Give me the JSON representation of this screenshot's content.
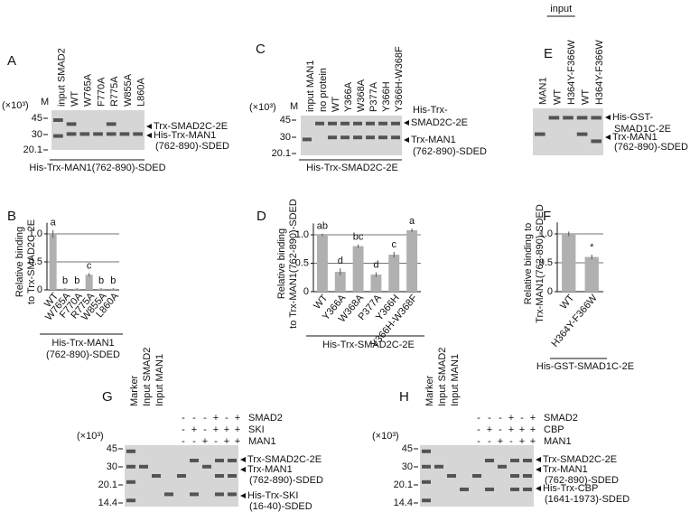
{
  "gels": [
    {
      "panel": "A",
      "unit": "(×10³)",
      "marker_lane": "M",
      "lanes": [
        "input SMAD2",
        "WT",
        "W765A",
        "F770A",
        "R775A",
        "W855A",
        "L860A"
      ],
      "markers": [
        "45",
        "30",
        "20.1"
      ],
      "band_labels": [
        "Trx-SMAD2C-2E",
        "His-Trx-MAN1",
        "(762-890)-SDED"
      ],
      "footer": "His-Trx-MAN1(762-890)-SDED"
    },
    {
      "panel": "C",
      "unit": "(×10³)",
      "marker_lane": "M",
      "lanes": [
        "input MAN1",
        "no protein",
        "WT",
        "Y366A",
        "W368A",
        "P377A",
        "Y366H",
        "Y366H-W368F"
      ],
      "markers": [
        "45",
        "30",
        "20.1"
      ],
      "band_labels": [
        "His-Trx-",
        "SMAD2C-2E",
        "Trx-MAN1",
        "(762-890)-SDED"
      ],
      "footer": "His-Trx-SMAD2C-2E"
    },
    {
      "panel": "E",
      "group_label": "input",
      "lanes": [
        "MAN1",
        "WT",
        "H364Y-F366W",
        "WT",
        "H364Y-F366W"
      ],
      "band_labels": [
        "His-GST-",
        "SMAD1C-2E",
        "Trx-MAN1",
        "(762-890)-SDED"
      ]
    },
    {
      "panel": "G",
      "unit": "(×10³)",
      "lanes": [
        "Marker",
        "Input SMAD2",
        "Input MAN1"
      ],
      "rows": [
        {
          "name": "SMAD2",
          "signs": [
            "-",
            "-",
            "-",
            "+",
            "-",
            "+"
          ]
        },
        {
          "name": "SKI",
          "signs": [
            "-",
            "+",
            "-",
            "+",
            "+",
            "+"
          ]
        },
        {
          "name": "MAN1",
          "signs": [
            "-",
            "-",
            "+",
            "-",
            "+",
            "+"
          ]
        }
      ],
      "markers": [
        "45",
        "30",
        "20.1",
        "14.4"
      ],
      "band_labels": [
        "Trx-SMAD2C-2E",
        "Trx-MAN1",
        "(762-890)-SDED",
        "His-Trx-SKI",
        "(16-40)-SDED"
      ]
    },
    {
      "panel": "H",
      "unit": "(×10³)",
      "lanes": [
        "Marker",
        "Input SMAD2",
        "Input MAN1"
      ],
      "rows": [
        {
          "name": "SMAD2",
          "signs": [
            "-",
            "-",
            "-",
            "+",
            "-",
            "+"
          ]
        },
        {
          "name": "CBP",
          "signs": [
            "-",
            "+",
            "-",
            "+",
            "+",
            "+"
          ]
        },
        {
          "name": "MAN1",
          "signs": [
            "-",
            "-",
            "+",
            "-",
            "+",
            "+"
          ]
        }
      ],
      "markers": [
        "45",
        "30",
        "20.1",
        "14.4"
      ],
      "band_labels": [
        "Trx-SMAD2C-2E",
        "Trx-MAN1",
        "(762-890)-SDED",
        "His-Trx-CBP",
        "(1641-1973)-SDED"
      ]
    }
  ],
  "chart_data": [
    {
      "type": "bar",
      "panel": "B",
      "categories": [
        "WT",
        "W765A",
        "F770A",
        "R775A",
        "W855A",
        "L860A"
      ],
      "values": [
        1.0,
        0.02,
        0.02,
        0.27,
        0.02,
        0.02
      ],
      "errors": [
        0.07,
        0.01,
        0.01,
        0.03,
        0.01,
        0.01
      ],
      "annotations": [
        "a",
        "b",
        "b",
        "c",
        "b",
        "b"
      ],
      "color": "#b0b0b0",
      "ylim": [
        0,
        1.2
      ],
      "yticks": [
        0,
        0.5,
        {
          "value": 1,
          "label": "1.0"
        }
      ],
      "grid": true,
      "ylabel": [
        "Relative binding",
        "to Trx-SMAD2C-2E"
      ],
      "xlabel": [
        "His-Trx-MAN1",
        "(762-890)-SDED"
      ]
    },
    {
      "type": "bar",
      "panel": "D",
      "categories": [
        "WT",
        "Y366A",
        "W368A",
        "P377A",
        "Y366H",
        "Y366H-W368F"
      ],
      "values": [
        1.0,
        0.35,
        0.8,
        0.3,
        0.65,
        1.08
      ],
      "errors": [
        0.02,
        0.06,
        0.03,
        0.04,
        0.05,
        0.03
      ],
      "annotations": [
        "ab",
        "d",
        "bc",
        "d",
        "c",
        "a"
      ],
      "color": "#b0b0b0",
      "ylim": [
        0,
        1.2
      ],
      "yticks": [
        0,
        0.5,
        {
          "value": 1,
          "label": "1.0"
        }
      ],
      "grid": true,
      "ylabel": [
        "Relative binding",
        "to Trx-MAN1(762-890)-SDED"
      ],
      "xlabel": [
        "His-Trx-SMAD2C-2E"
      ]
    },
    {
      "type": "bar",
      "panel": "F",
      "categories": [
        "WT",
        "H364Y-F366W"
      ],
      "values": [
        1.0,
        0.6
      ],
      "errors": [
        0.04,
        0.04
      ],
      "annotations": [
        null,
        "*"
      ],
      "color": "#b0b0b0",
      "ylim": [
        0,
        1.2
      ],
      "yticks": [
        0,
        0.5,
        {
          "value": 1,
          "label": "1.0"
        }
      ],
      "grid": true,
      "ylabel": [
        "Relative binding to",
        "Trx-MAN1(762-890)-SDED"
      ],
      "xlabel": [
        "His-GST-SMAD1C-2E"
      ]
    }
  ]
}
